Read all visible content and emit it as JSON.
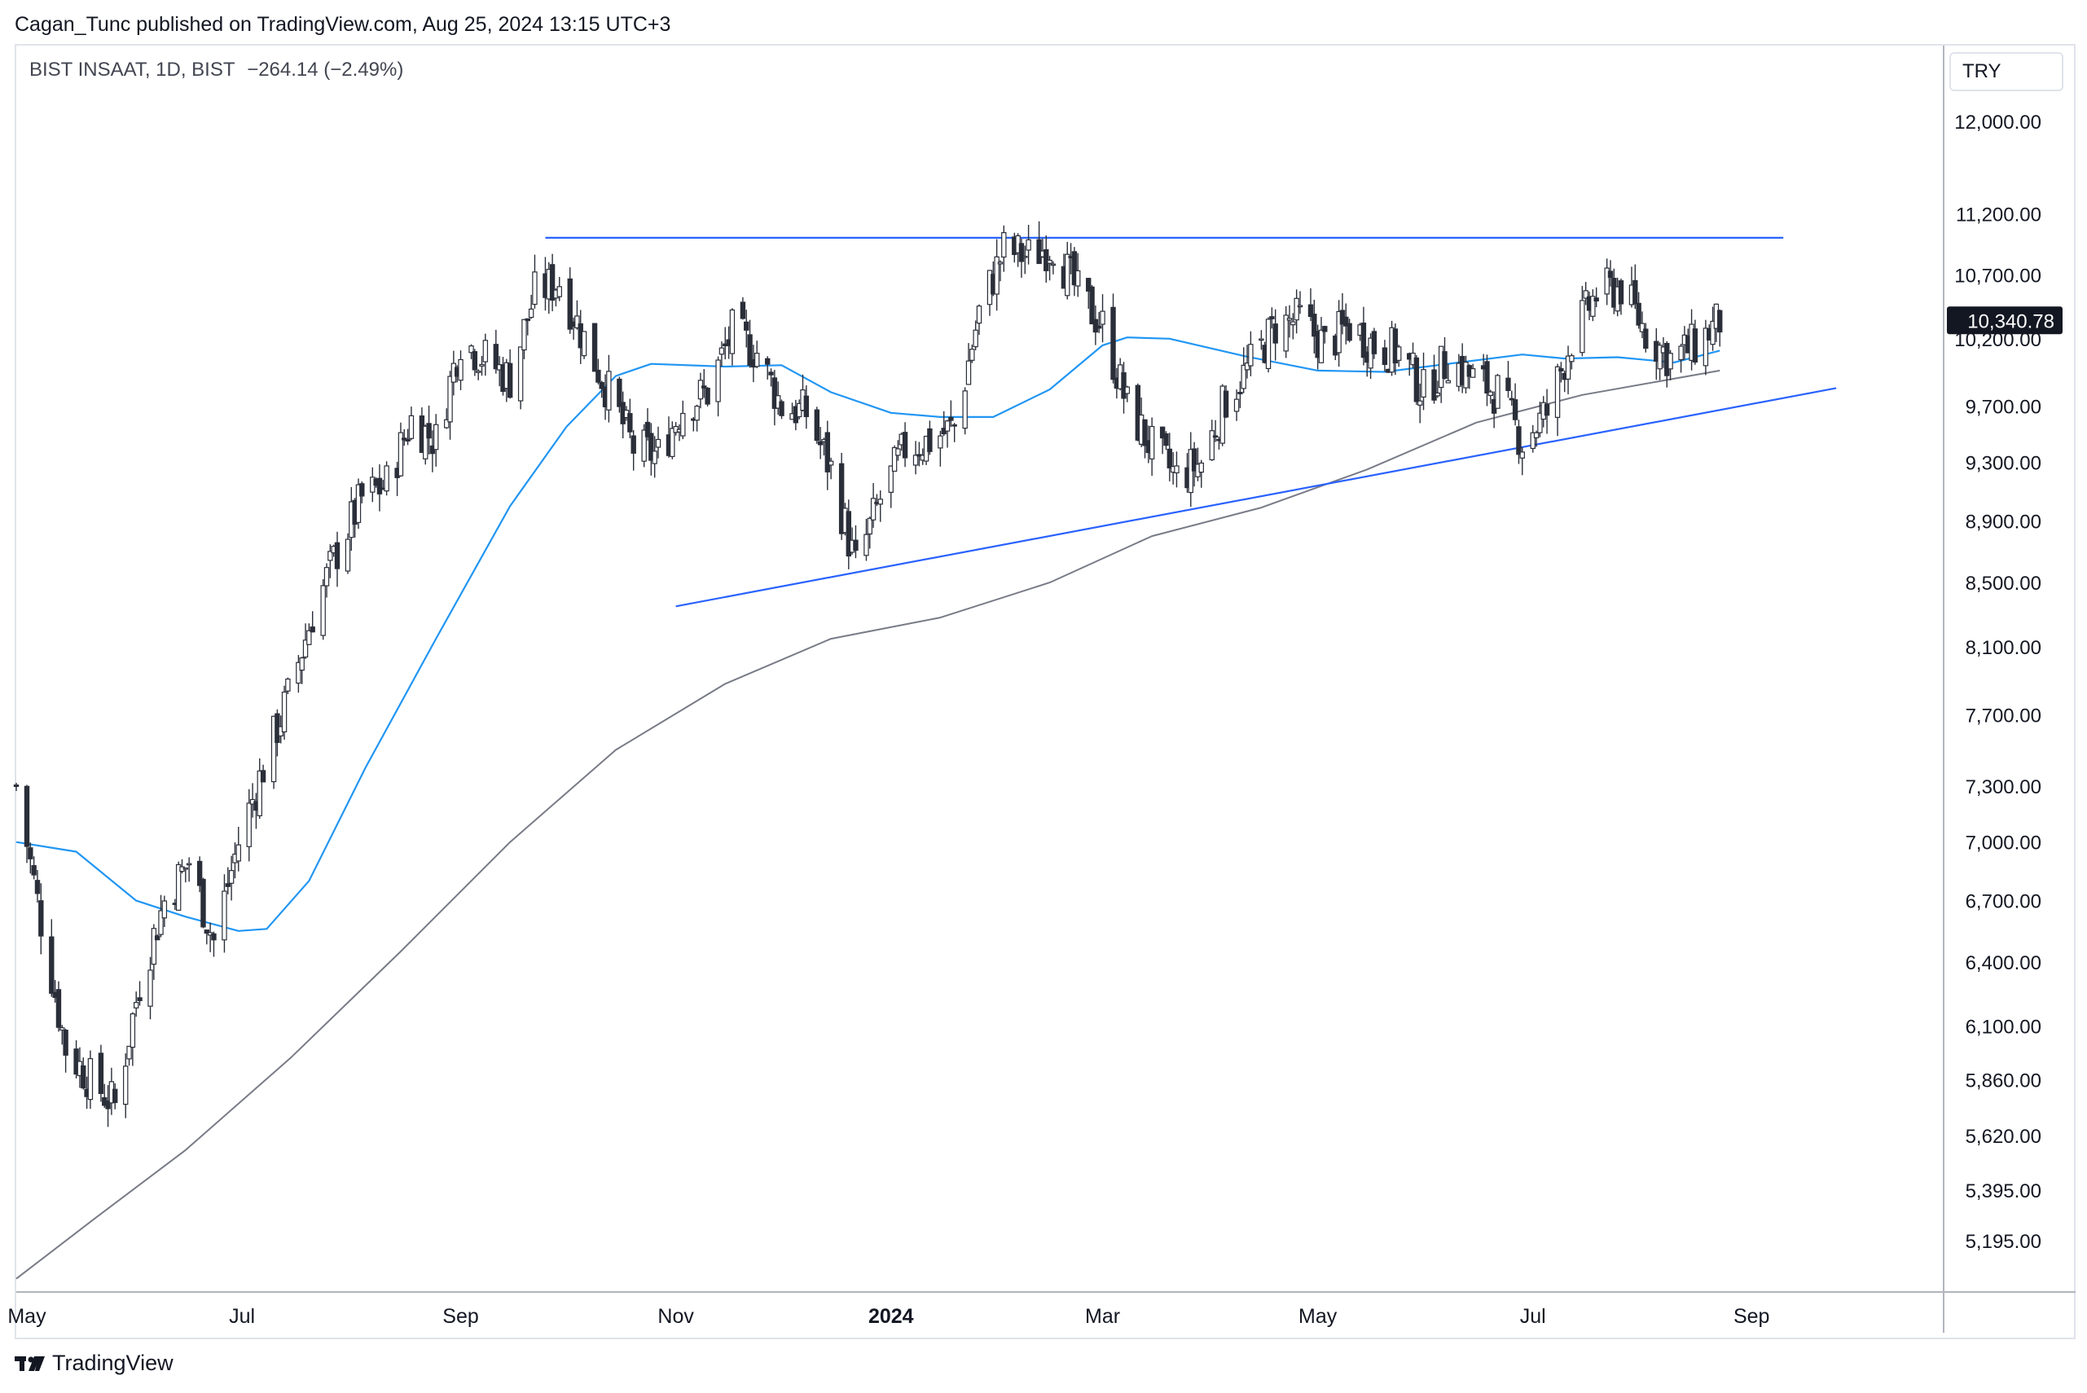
{
  "header": {
    "published": "Cagan_Tunc published on TradingView.com, Aug 25, 2024 13:15 UTC+3"
  },
  "legend": {
    "symbol": "BIST INSAAT, 1D, BIST",
    "change": "−264.14 (−2.49%)"
  },
  "currency": "TRY",
  "footer": {
    "brand": "TradingView"
  },
  "colors": {
    "candle": "#2a2e39",
    "ma_short": "#2196f3",
    "ma_long": "#787b86",
    "trendlines": "#2962ff",
    "last_price_bg": "#131722"
  },
  "chart_data": {
    "type": "candlestick",
    "y_scale": "log",
    "ylim": [
      5000,
      12700
    ],
    "xlim": [
      "2023-04-28",
      "2024-10-25"
    ],
    "y_ticks": [
      "12,000.00",
      "11,200.00",
      "10,700.00",
      "10,200.00",
      "9,700.00",
      "9,300.00",
      "8,900.00",
      "8,500.00",
      "8,100.00",
      "7,700.00",
      "7,300.00",
      "7,000.00",
      "6,700.00",
      "6,400.00",
      "6,100.00",
      "5,860.00",
      "5,620.00",
      "5,395.00",
      "5,195.00"
    ],
    "x_ticks": [
      {
        "label": "May",
        "date": "2023-05-01",
        "bold": false
      },
      {
        "label": "Jul",
        "date": "2023-07-01",
        "bold": false
      },
      {
        "label": "Sep",
        "date": "2023-09-01",
        "bold": false
      },
      {
        "label": "Nov",
        "date": "2023-11-01",
        "bold": false
      },
      {
        "label": "2024",
        "date": "2024-01-01",
        "bold": true
      },
      {
        "label": "Mar",
        "date": "2024-03-01",
        "bold": false
      },
      {
        "label": "May",
        "date": "2024-05-01",
        "bold": false
      },
      {
        "label": "Jul",
        "date": "2024-07-01",
        "bold": false
      },
      {
        "label": "Sep",
        "date": "2024-09-01",
        "bold": false
      }
    ],
    "last_price": "10,340.78",
    "last_price_value": 10340.78,
    "close_path": [
      [
        "2023-04-28",
        7300
      ],
      [
        "2023-05-05",
        6600
      ],
      [
        "2023-05-12",
        6000
      ],
      [
        "2023-05-19",
        5860
      ],
      [
        "2023-05-26",
        5750
      ],
      [
        "2023-06-02",
        6300
      ],
      [
        "2023-06-09",
        6700
      ],
      [
        "2023-06-16",
        6900
      ],
      [
        "2023-06-23",
        6500
      ],
      [
        "2023-06-30",
        7000
      ],
      [
        "2023-07-07",
        7400
      ],
      [
        "2023-07-14",
        7800
      ],
      [
        "2023-07-21",
        8300
      ],
      [
        "2023-07-28",
        8700
      ],
      [
        "2023-08-04",
        9050
      ],
      [
        "2023-08-11",
        9150
      ],
      [
        "2023-08-18",
        9600
      ],
      [
        "2023-08-25",
        9450
      ],
      [
        "2023-09-01",
        10200
      ],
      [
        "2023-09-08",
        10050
      ],
      [
        "2023-09-15",
        9900
      ],
      [
        "2023-09-22",
        10550
      ],
      [
        "2023-09-29",
        10650
      ],
      [
        "2023-10-06",
        10200
      ],
      [
        "2023-10-13",
        9800
      ],
      [
        "2023-10-20",
        9400
      ],
      [
        "2023-10-27",
        9350
      ],
      [
        "2023-11-03",
        9700
      ],
      [
        "2023-11-10",
        9800
      ],
      [
        "2023-11-17",
        10250
      ],
      [
        "2023-11-24",
        10100
      ],
      [
        "2023-12-01",
        9700
      ],
      [
        "2023-12-08",
        9650
      ],
      [
        "2023-12-15",
        9250
      ],
      [
        "2023-12-22",
        8600
      ],
      [
        "2023-12-29",
        9050
      ],
      [
        "2024-01-05",
        9400
      ],
      [
        "2024-01-12",
        9450
      ],
      [
        "2024-01-19",
        9550
      ],
      [
        "2024-01-26",
        10400
      ],
      [
        "2024-02-02",
        10900
      ],
      [
        "2024-02-09",
        10850
      ],
      [
        "2024-02-16",
        10950
      ],
      [
        "2024-02-23",
        10550
      ],
      [
        "2024-03-01",
        10300
      ],
      [
        "2024-03-08",
        9700
      ],
      [
        "2024-03-15",
        9400
      ],
      [
        "2024-03-22",
        9200
      ],
      [
        "2024-03-29",
        9300
      ],
      [
        "2024-04-05",
        9750
      ],
      [
        "2024-04-12",
        10000
      ],
      [
        "2024-04-19",
        10300
      ],
      [
        "2024-04-26",
        10350
      ],
      [
        "2024-05-03",
        10150
      ],
      [
        "2024-05-10",
        10300
      ],
      [
        "2024-05-17",
        10150
      ],
      [
        "2024-05-24",
        10100
      ],
      [
        "2024-05-31",
        9800
      ],
      [
        "2024-06-07",
        10050
      ],
      [
        "2024-06-14",
        9900
      ],
      [
        "2024-06-21",
        9800
      ],
      [
        "2024-06-28",
        9450
      ],
      [
        "2024-07-05",
        9650
      ],
      [
        "2024-07-12",
        10200
      ],
      [
        "2024-07-19",
        10550
      ],
      [
        "2024-07-26",
        10600
      ],
      [
        "2024-08-02",
        10250
      ],
      [
        "2024-08-09",
        10050
      ],
      [
        "2024-08-16",
        10150
      ],
      [
        "2024-08-23",
        10340.78
      ]
    ],
    "ma_short_path": [
      [
        "2023-04-28",
        7000
      ],
      [
        "2023-05-15",
        6950
      ],
      [
        "2023-06-01",
        6700
      ],
      [
        "2023-06-15",
        6620
      ],
      [
        "2023-06-30",
        6550
      ],
      [
        "2023-07-08",
        6560
      ],
      [
        "2023-07-20",
        6800
      ],
      [
        "2023-08-05",
        7400
      ],
      [
        "2023-08-25",
        8150
      ],
      [
        "2023-09-15",
        9000
      ],
      [
        "2023-10-01",
        9550
      ],
      [
        "2023-10-15",
        9920
      ],
      [
        "2023-10-25",
        10010
      ],
      [
        "2023-11-15",
        9990
      ],
      [
        "2023-12-01",
        10000
      ],
      [
        "2023-12-15",
        9800
      ],
      [
        "2024-01-01",
        9650
      ],
      [
        "2024-01-15",
        9620
      ],
      [
        "2024-01-30",
        9620
      ],
      [
        "2024-02-15",
        9820
      ],
      [
        "2024-03-01",
        10150
      ],
      [
        "2024-03-08",
        10210
      ],
      [
        "2024-03-20",
        10200
      ],
      [
        "2024-04-10",
        10070
      ],
      [
        "2024-05-01",
        9960
      ],
      [
        "2024-05-20",
        9950
      ],
      [
        "2024-06-10",
        10020
      ],
      [
        "2024-06-28",
        10080
      ],
      [
        "2024-07-10",
        10050
      ],
      [
        "2024-07-25",
        10060
      ],
      [
        "2024-08-10",
        10020
      ],
      [
        "2024-08-23",
        10110
      ]
    ],
    "ma_long_path": [
      [
        "2023-04-28",
        5050
      ],
      [
        "2023-05-20",
        5280
      ],
      [
        "2023-06-15",
        5560
      ],
      [
        "2023-07-15",
        5960
      ],
      [
        "2023-08-15",
        6450
      ],
      [
        "2023-09-15",
        7000
      ],
      [
        "2023-10-15",
        7500
      ],
      [
        "2023-11-15",
        7880
      ],
      [
        "2023-12-15",
        8150
      ],
      [
        "2024-01-15",
        8280
      ],
      [
        "2024-02-15",
        8500
      ],
      [
        "2024-03-15",
        8800
      ],
      [
        "2024-04-15",
        8990
      ],
      [
        "2024-05-15",
        9250
      ],
      [
        "2024-06-15",
        9580
      ],
      [
        "2024-07-15",
        9780
      ],
      [
        "2024-08-23",
        9960
      ]
    ],
    "trendlines": [
      {
        "start": [
          "2023-09-25",
          11000
        ],
        "end": [
          "2024-09-10",
          11000
        ]
      },
      {
        "start": [
          "2023-11-01",
          8350
        ],
        "end": [
          "2024-09-25",
          9830
        ]
      }
    ]
  }
}
